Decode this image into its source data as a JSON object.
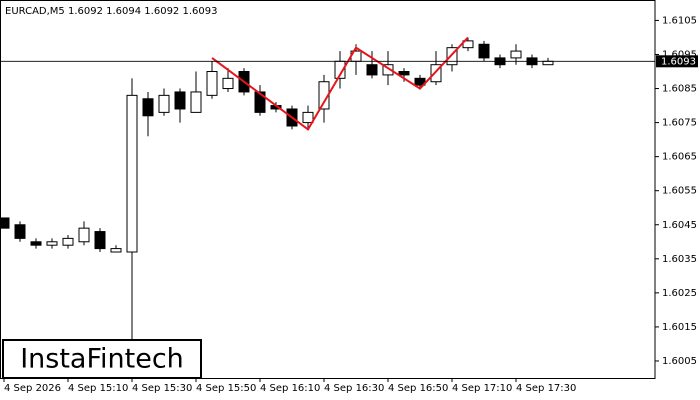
{
  "chart_data": {
    "type": "candlestick",
    "title": "EURCAD,M5  1.6092 1.6094 1.6092 1.6093",
    "logo": "InstaFintech",
    "categories": [
      "4 Sep 2026",
      null,
      null,
      null,
      "4 Sep 15:10",
      null,
      null,
      null,
      "4 Sep 15:30",
      null,
      null,
      null,
      "4 Sep 15:50",
      null,
      null,
      null,
      "4 Sep 16:10",
      null,
      null,
      null,
      "4 Sep 16:30",
      null,
      null,
      null,
      "4 Sep 16:50",
      null,
      null,
      null,
      "4 Sep 17:10",
      null,
      null,
      null,
      "4 Sep 17:30",
      null,
      null
    ],
    "open": [
      1.6047,
      1.6045,
      1.604,
      1.6039,
      1.6039,
      1.604,
      1.6043,
      1.6037,
      1.6037,
      1.6082,
      1.6078,
      1.6084,
      1.6078,
      1.6083,
      1.6085,
      1.609,
      1.6084,
      1.608,
      1.6079,
      1.6075,
      1.6079,
      1.6088,
      1.6093,
      1.6092,
      1.6089,
      1.609,
      1.6088,
      1.6087,
      1.6092,
      1.6097,
      1.6098,
      1.6094,
      1.6094,
      1.6094,
      1.6092
    ],
    "high": [
      1.6047,
      1.6046,
      1.6041,
      1.6041,
      1.6042,
      1.6046,
      1.6044,
      1.6039,
      1.6088,
      1.6084,
      1.6085,
      1.6085,
      1.609,
      1.6093,
      1.6091,
      1.6091,
      1.6086,
      1.6081,
      1.608,
      1.608,
      1.6089,
      1.6096,
      1.6098,
      1.6096,
      1.6096,
      1.6091,
      1.6089,
      1.6096,
      1.6098,
      1.61,
      1.6099,
      1.6095,
      1.6098,
      1.6095,
      1.6094
    ],
    "low": [
      1.6044,
      1.604,
      1.6038,
      1.6038,
      1.6038,
      1.6039,
      1.6037,
      1.6037,
      1.6011,
      1.6071,
      1.6077,
      1.6075,
      1.6078,
      1.6082,
      1.6084,
      1.6083,
      1.6077,
      1.6078,
      1.6073,
      1.6073,
      1.6075,
      1.6085,
      1.6089,
      1.6088,
      1.6086,
      1.6087,
      1.6085,
      1.6086,
      1.609,
      1.6096,
      1.6093,
      1.6091,
      1.6092,
      1.6091,
      1.6092
    ],
    "close": [
      1.6044,
      1.6041,
      1.6039,
      1.604,
      1.6041,
      1.6044,
      1.6038,
      1.6038,
      1.6083,
      1.6077,
      1.6083,
      1.6079,
      1.6084,
      1.609,
      1.6088,
      1.6084,
      1.6078,
      1.6079,
      1.6074,
      1.6078,
      1.6087,
      1.6093,
      1.6096,
      1.6089,
      1.6092,
      1.6089,
      1.6086,
      1.6092,
      1.6097,
      1.6099,
      1.6094,
      1.6092,
      1.6096,
      1.6092,
      1.6093
    ],
    "up_color": "#ffffff",
    "down_color": "#000000",
    "last_price": 1.6093,
    "pattern": {
      "color": "#e8141c",
      "bars": [
        13,
        19,
        22,
        26,
        29
      ],
      "values": [
        1.6094,
        1.6073,
        1.6097,
        1.6085,
        1.61
      ]
    },
    "ylim": [
      1.6,
      1.6111
    ],
    "yticks": [
      1.6005,
      1.6015,
      1.6025,
      1.6035,
      1.6045,
      1.6055,
      1.6065,
      1.6075,
      1.6085,
      1.6095,
      1.6105
    ]
  }
}
